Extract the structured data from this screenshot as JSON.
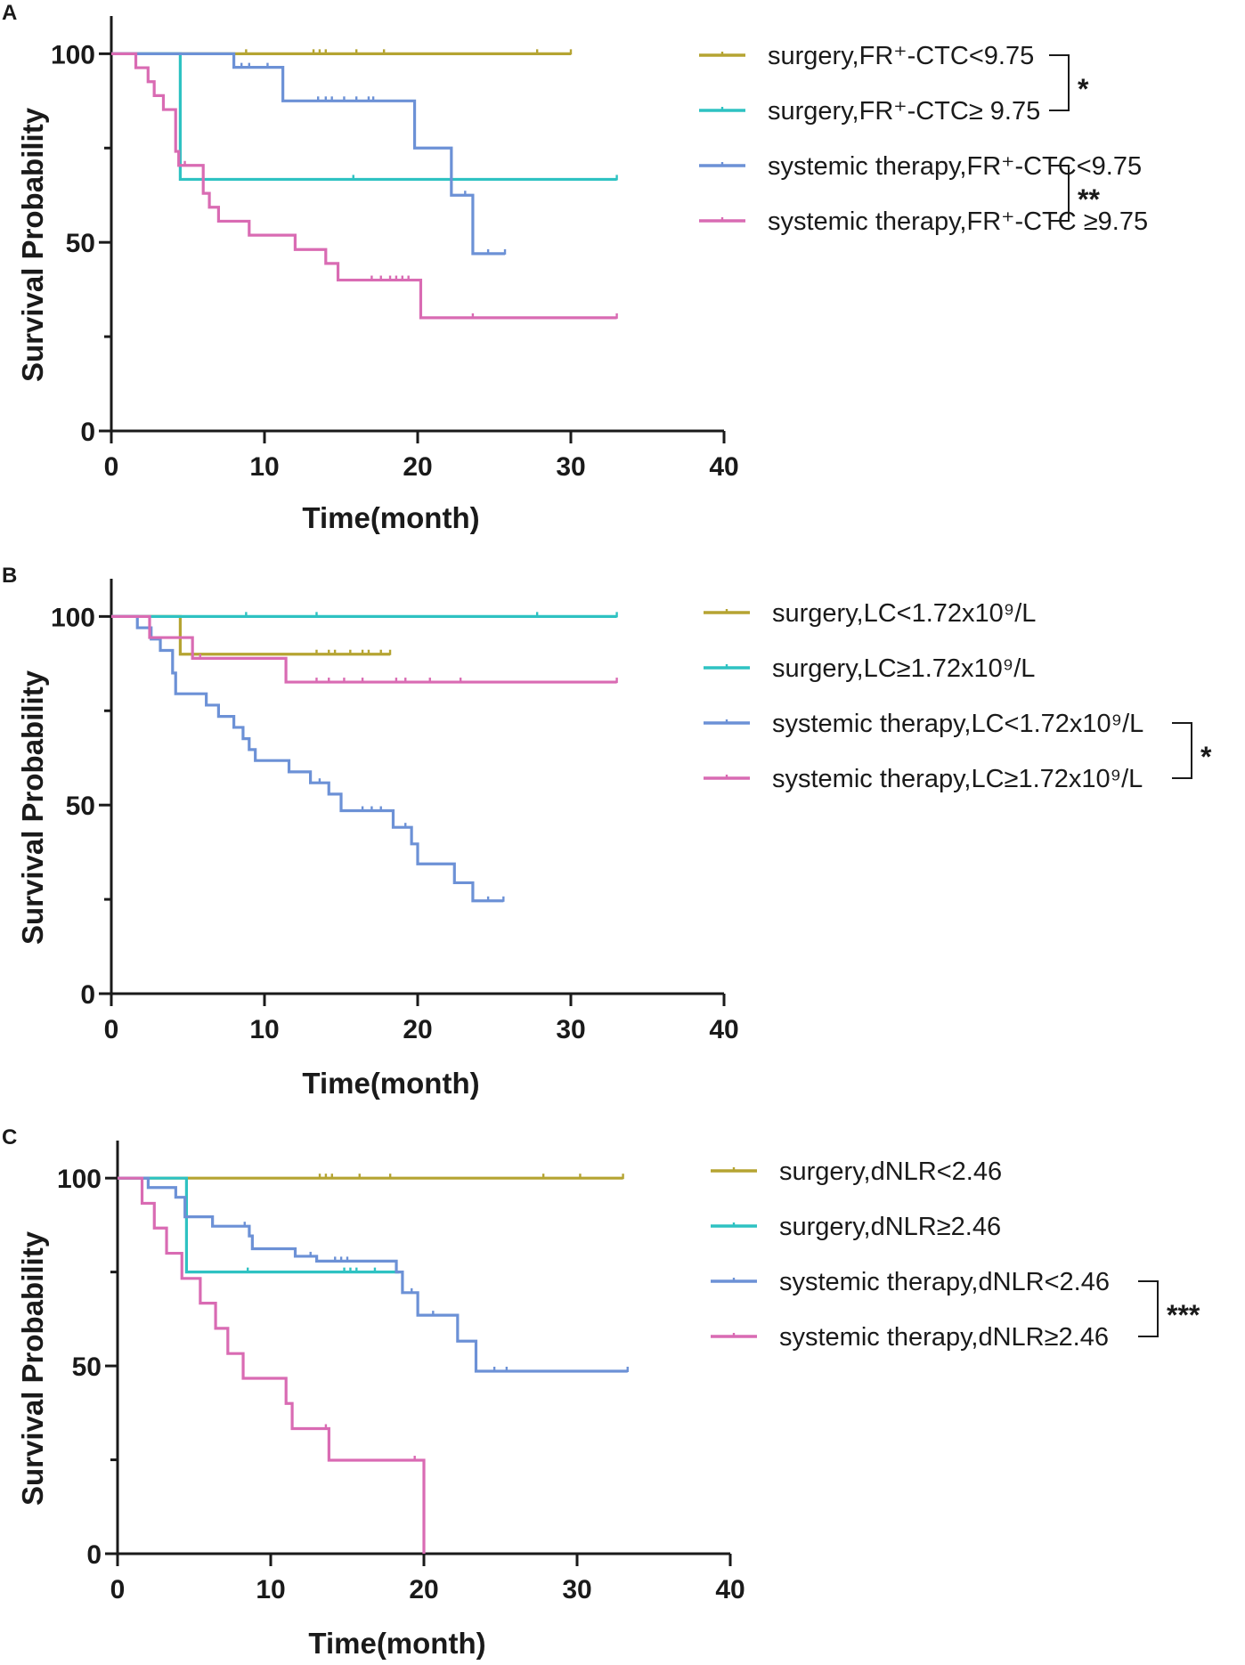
{
  "colors": {
    "surgery_low": "#B5A432",
    "surgery_high": "#2EC2C2",
    "systemic_low": "#6C91D6",
    "systemic_high": "#D96BB3",
    "axis": "#1a1a1a"
  },
  "chart_data": [
    {
      "type": "line",
      "panel_label": "A",
      "xlabel": "Time(month)",
      "ylabel": "Survival Probability",
      "xlim": [
        0,
        40
      ],
      "ylim": [
        0,
        110
      ],
      "x_ticks": [
        0,
        10,
        20,
        30,
        40
      ],
      "y_ticks": [
        0,
        50,
        100
      ],
      "x_tick_labels": [
        "0",
        "10",
        "20",
        "30",
        "40"
      ],
      "y_tick_labels": [
        "0",
        "50",
        "100"
      ],
      "legend": [
        "surgery,FR⁺-CTC<9.75",
        "surgery,FR⁺-CTC≥ 9.75",
        "systemic therapy,FR⁺-CTC<9.75",
        "systemic therapy,FR⁺-CTC ≥9.75"
      ],
      "significance": [
        {
          "label": "*",
          "legend_from": 0,
          "legend_to": 1
        },
        {
          "label": "**",
          "legend_from": 2,
          "legend_to": 3
        }
      ],
      "series": [
        {
          "name": "surgery,FR⁺-CTC<9.75",
          "color_key": "surgery_low",
          "steps": [
            [
              0,
              100
            ],
            [
              30,
              100
            ]
          ],
          "censor": [
            [
              8.8,
              100
            ],
            [
              13.2,
              100
            ],
            [
              13.6,
              100
            ],
            [
              14.0,
              100
            ],
            [
              16.0,
              100
            ],
            [
              17.8,
              100
            ],
            [
              27.8,
              100
            ],
            [
              30,
              100
            ]
          ]
        },
        {
          "name": "surgery,FR⁺-CTC≥ 9.75",
          "color_key": "surgery_high",
          "steps": [
            [
              0,
              100
            ],
            [
              4.5,
              66.7
            ],
            [
              33,
              66.7
            ]
          ],
          "censor": [
            [
              15.8,
              66.7
            ],
            [
              33,
              66.7
            ]
          ]
        },
        {
          "name": "systemic therapy,FR⁺-CTC<9.75",
          "color_key": "systemic_low",
          "steps": [
            [
              0,
              100
            ],
            [
              8.0,
              96.4
            ],
            [
              11.2,
              87.5
            ],
            [
              19.8,
              75
            ],
            [
              22.2,
              62.5
            ],
            [
              23.6,
              47
            ],
            [
              25.7,
              47
            ]
          ],
          "censor": [
            [
              8.5,
              96.4
            ],
            [
              9.0,
              96.4
            ],
            [
              10.2,
              96.4
            ],
            [
              13.5,
              87.5
            ],
            [
              14.0,
              87.5
            ],
            [
              14.4,
              87.5
            ],
            [
              15.2,
              87.5
            ],
            [
              16.0,
              87.5
            ],
            [
              16.8,
              87.5
            ],
            [
              17.1,
              87.5
            ],
            [
              23.1,
              62.5
            ],
            [
              24.6,
              47
            ],
            [
              25.7,
              47
            ]
          ]
        },
        {
          "name": "systemic therapy,FR⁺-CTC ≥9.75",
          "color_key": "systemic_high",
          "steps": [
            [
              0,
              100
            ],
            [
              1.6,
              96.3
            ],
            [
              2.4,
              92.6
            ],
            [
              2.8,
              88.9
            ],
            [
              3.4,
              85.2
            ],
            [
              4.2,
              74.1
            ],
            [
              4.4,
              70.4
            ],
            [
              6.0,
              63.0
            ],
            [
              6.4,
              59.3
            ],
            [
              7.0,
              55.6
            ],
            [
              9.0,
              51.9
            ],
            [
              12.0,
              48.1
            ],
            [
              14.0,
              44.4
            ],
            [
              14.8,
              40.0
            ],
            [
              20.2,
              30.0
            ],
            [
              33,
              30.0
            ]
          ],
          "censor": [
            [
              4.8,
              70.4
            ],
            [
              17.0,
              40.0
            ],
            [
              17.6,
              40.0
            ],
            [
              18.2,
              40.0
            ],
            [
              18.6,
              40.0
            ],
            [
              19.0,
              40.0
            ],
            [
              19.4,
              40.0
            ],
            [
              23.6,
              30.0
            ],
            [
              33,
              30.0
            ]
          ]
        }
      ]
    },
    {
      "type": "line",
      "panel_label": "B",
      "xlabel": "Time(month)",
      "ylabel": "Survival Probability",
      "xlim": [
        0,
        40
      ],
      "ylim": [
        0,
        110
      ],
      "x_ticks": [
        0,
        10,
        20,
        30,
        40
      ],
      "y_ticks": [
        0,
        50,
        100
      ],
      "x_tick_labels": [
        "0",
        "10",
        "20",
        "30",
        "40"
      ],
      "y_tick_labels": [
        "0",
        "50",
        "100"
      ],
      "legend": [
        "surgery,LC<1.72x10⁹/L",
        "surgery,LC≥1.72x10⁹/L",
        "systemic therapy,LC<1.72x10⁹/L",
        "systemic therapy,LC≥1.72x10⁹/L"
      ],
      "significance": [
        {
          "label": "*",
          "legend_from": 2,
          "legend_to": 3
        }
      ],
      "series": [
        {
          "name": "surgery,LC<1.72x10⁹/L",
          "color_key": "surgery_low",
          "steps": [
            [
              0,
              100
            ],
            [
              4.5,
              90
            ],
            [
              18.2,
              90
            ]
          ],
          "censor": [
            [
              13.4,
              90
            ],
            [
              14.2,
              90
            ],
            [
              14.6,
              90
            ],
            [
              15.6,
              90
            ],
            [
              16.4,
              90
            ],
            [
              16.8,
              90
            ],
            [
              17.6,
              90
            ],
            [
              18.2,
              90
            ]
          ]
        },
        {
          "name": "surgery,LC≥1.72x10⁹/L",
          "color_key": "surgery_high",
          "steps": [
            [
              0,
              100
            ],
            [
              33,
              100
            ]
          ],
          "censor": [
            [
              8.8,
              100
            ],
            [
              13.4,
              100
            ],
            [
              27.8,
              100
            ],
            [
              33,
              100
            ]
          ]
        },
        {
          "name": "systemic therapy,LC<1.72x10⁹/L",
          "color_key": "systemic_low",
          "steps": [
            [
              0,
              100
            ],
            [
              1.7,
              97
            ],
            [
              2.6,
              94
            ],
            [
              3.2,
              91
            ],
            [
              4.0,
              85
            ],
            [
              4.2,
              79.5
            ],
            [
              6.2,
              76.5
            ],
            [
              7.0,
              73.5
            ],
            [
              8.0,
              70.6
            ],
            [
              8.6,
              67.6
            ],
            [
              9.0,
              64.7
            ],
            [
              9.4,
              61.8
            ],
            [
              11.6,
              58.8
            ],
            [
              13.0,
              55.9
            ],
            [
              14.2,
              52.9
            ],
            [
              15.0,
              48.5
            ],
            [
              18.4,
              44.1
            ],
            [
              19.6,
              39.7
            ],
            [
              20.0,
              34.4
            ],
            [
              22.4,
              29.4
            ],
            [
              23.6,
              24.6
            ],
            [
              25.6,
              24.6
            ]
          ],
          "censor": [
            [
              13.6,
              55.9
            ],
            [
              16.4,
              48.5
            ],
            [
              17.0,
              48.5
            ],
            [
              17.6,
              48.5
            ],
            [
              19.2,
              44.1
            ],
            [
              24.6,
              24.6
            ],
            [
              25.6,
              24.6
            ]
          ]
        },
        {
          "name": "systemic therapy,LC≥1.72x10⁹/L",
          "color_key": "systemic_high",
          "steps": [
            [
              0,
              100
            ],
            [
              2.5,
              94.4
            ],
            [
              5.3,
              88.9
            ],
            [
              11.4,
              82.6
            ],
            [
              33,
              82.6
            ]
          ],
          "censor": [
            [
              5.8,
              88.9
            ],
            [
              13.4,
              82.6
            ],
            [
              14.2,
              82.6
            ],
            [
              15.2,
              82.6
            ],
            [
              16.4,
              82.6
            ],
            [
              18.6,
              82.6
            ],
            [
              19.2,
              82.6
            ],
            [
              20.8,
              82.6
            ],
            [
              22.8,
              82.6
            ],
            [
              33,
              82.6
            ]
          ]
        }
      ]
    },
    {
      "type": "line",
      "panel_label": "C",
      "xlabel": "Time(month)",
      "ylabel": "Survival Probability",
      "xlim": [
        0,
        40
      ],
      "ylim": [
        0,
        110
      ],
      "x_ticks": [
        0,
        10,
        20,
        30,
        40
      ],
      "y_ticks": [
        0,
        50,
        100
      ],
      "x_tick_labels": [
        "0",
        "10",
        "20",
        "30",
        "40"
      ],
      "y_tick_labels": [
        "0",
        "50",
        "100"
      ],
      "legend": [
        "surgery,dNLR<2.46",
        "surgery,dNLR≥2.46",
        "systemic therapy,dNLR<2.46",
        "systemic therapy,dNLR≥2.46"
      ],
      "significance": [
        {
          "label": "***",
          "legend_from": 2,
          "legend_to": 3
        }
      ],
      "series": [
        {
          "name": "surgery,dNLR<2.46",
          "color_key": "surgery_low",
          "steps": [
            [
              0,
              100
            ],
            [
              33,
              100
            ]
          ],
          "censor": [
            [
              13.2,
              100
            ],
            [
              13.6,
              100
            ],
            [
              14.0,
              100
            ],
            [
              15.8,
              100
            ],
            [
              17.8,
              100
            ],
            [
              27.8,
              100
            ],
            [
              30.2,
              100
            ],
            [
              33,
              100
            ]
          ]
        },
        {
          "name": "surgery,dNLR≥2.46",
          "color_key": "surgery_high",
          "steps": [
            [
              0,
              100
            ],
            [
              4.5,
              75
            ],
            [
              18.4,
              75
            ]
          ],
          "censor": [
            [
              8.5,
              75
            ],
            [
              14.8,
              75
            ],
            [
              15.2,
              75
            ],
            [
              15.6,
              75
            ],
            [
              16.8,
              75
            ]
          ]
        },
        {
          "name": "systemic therapy,dNLR<2.46",
          "color_key": "systemic_low",
          "steps": [
            [
              0,
              100
            ],
            [
              2.0,
              97.5
            ],
            [
              3.8,
              94.9
            ],
            [
              4.4,
              89.7
            ],
            [
              6.2,
              87.2
            ],
            [
              8.6,
              84.6
            ],
            [
              8.8,
              81.2
            ],
            [
              11.6,
              79.2
            ],
            [
              13.0,
              77.9
            ],
            [
              18.2,
              75.0
            ],
            [
              18.6,
              69.5
            ],
            [
              19.6,
              63.5
            ],
            [
              22.2,
              56.6
            ],
            [
              23.4,
              48.6
            ],
            [
              33.3,
              48.6
            ]
          ],
          "censor": [
            [
              8.3,
              87.2
            ],
            [
              12.6,
              79.2
            ],
            [
              14.2,
              77.9
            ],
            [
              14.6,
              77.9
            ],
            [
              15.0,
              77.9
            ],
            [
              19.2,
              69.5
            ],
            [
              20.6,
              63.5
            ],
            [
              24.6,
              48.6
            ],
            [
              25.4,
              48.6
            ],
            [
              33.3,
              48.6
            ]
          ]
        },
        {
          "name": "systemic therapy,dNLR≥2.46",
          "color_key": "systemic_high",
          "steps": [
            [
              0,
              100
            ],
            [
              1.6,
              93.3
            ],
            [
              2.4,
              86.7
            ],
            [
              3.2,
              80
            ],
            [
              4.2,
              73.3
            ],
            [
              5.4,
              66.7
            ],
            [
              6.4,
              60
            ],
            [
              7.2,
              53.3
            ],
            [
              8.2,
              46.7
            ],
            [
              11.0,
              40
            ],
            [
              11.4,
              33.3
            ],
            [
              13.8,
              24.9
            ],
            [
              20.0,
              0
            ]
          ],
          "censor": [
            [
              13.6,
              33.3
            ],
            [
              19.4,
              24.9
            ]
          ]
        }
      ]
    }
  ]
}
